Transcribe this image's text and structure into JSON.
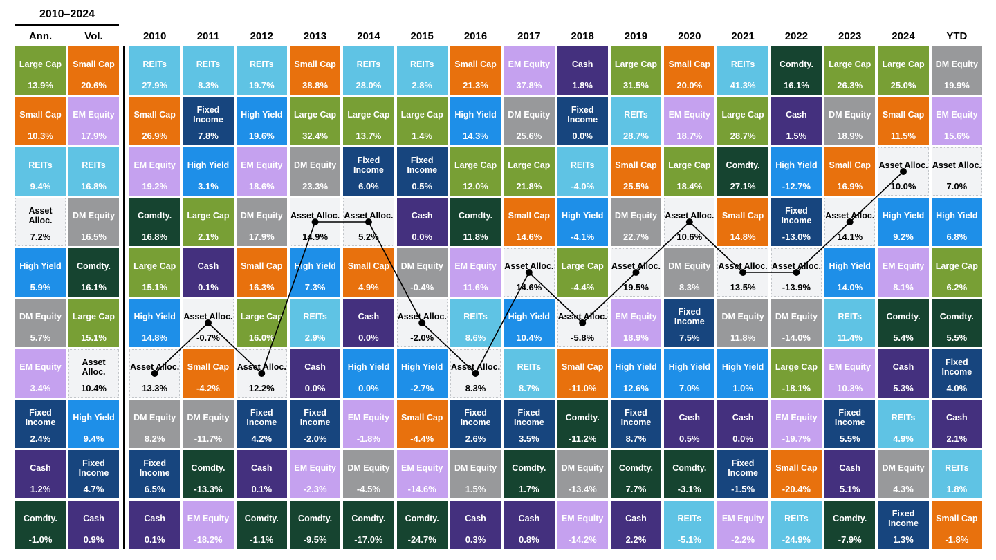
{
  "chart_data": {
    "type": "table",
    "title": "2010–2024",
    "description_visible_text_only": true,
    "asset_classes": {
      "large_cap": {
        "label": "Large Cap",
        "color": "#789F35",
        "text_color": "#ffffff"
      },
      "small_cap": {
        "label": "Small Cap",
        "color": "#E8710D",
        "text_color": "#ffffff"
      },
      "reits": {
        "label": "REITs",
        "color": "#5FC3E4",
        "text_color": "#ffffff"
      },
      "em_equity": {
        "label": "EM Equity",
        "color": "#C5A1EF",
        "text_color": "#ffffff"
      },
      "dm_equity": {
        "label": "DM Equity",
        "color": "#98999B",
        "text_color": "#ffffff"
      },
      "fixed_income": {
        "label": "Fixed Income",
        "color": "#17457E",
        "text_color": "#ffffff"
      },
      "high_yield": {
        "label": "High Yield",
        "color": "#1E8FE8",
        "text_color": "#ffffff"
      },
      "asset_alloc": {
        "label": "Asset Alloc.",
        "color": "#F2F3F5",
        "text_color": "#000000"
      },
      "cash": {
        "label": "Cash",
        "color": "#44307E",
        "text_color": "#ffffff"
      },
      "comdty": {
        "label": "Comdty.",
        "color": "#164430",
        "text_color": "#ffffff"
      }
    },
    "line_overlay": {
      "asset": "asset_alloc",
      "color": "#000000",
      "dot_radius": 5,
      "columns": [
        "2010",
        "2011",
        "2012",
        "2013",
        "2014",
        "2015",
        "2016",
        "2017",
        "2018",
        "2019",
        "2020",
        "2021",
        "2022",
        "2023",
        "2024"
      ]
    },
    "columns": [
      {
        "key": "ann",
        "header": "Ann.",
        "cells": [
          {
            "asset": "large_cap",
            "value": "13.9%"
          },
          {
            "asset": "small_cap",
            "value": "10.3%"
          },
          {
            "asset": "reits",
            "value": "9.4%"
          },
          {
            "asset": "asset_alloc",
            "value": "7.2%"
          },
          {
            "asset": "high_yield",
            "value": "5.9%"
          },
          {
            "asset": "dm_equity",
            "value": "5.7%"
          },
          {
            "asset": "em_equity",
            "value": "3.4%"
          },
          {
            "asset": "fixed_income",
            "value": "2.4%"
          },
          {
            "asset": "cash",
            "value": "1.2%"
          },
          {
            "asset": "comdty",
            "value": "-1.0%"
          }
        ]
      },
      {
        "key": "vol",
        "header": "Vol.",
        "cells": [
          {
            "asset": "small_cap",
            "value": "20.6%"
          },
          {
            "asset": "em_equity",
            "value": "17.9%"
          },
          {
            "asset": "reits",
            "value": "16.8%"
          },
          {
            "asset": "dm_equity",
            "value": "16.5%"
          },
          {
            "asset": "comdty",
            "value": "16.1%"
          },
          {
            "asset": "large_cap",
            "value": "15.1%"
          },
          {
            "asset": "asset_alloc",
            "value": "10.4%"
          },
          {
            "asset": "high_yield",
            "value": "9.4%"
          },
          {
            "asset": "fixed_income",
            "value": "4.7%"
          },
          {
            "asset": "cash",
            "value": "0.9%"
          }
        ]
      },
      {
        "key": "2010",
        "header": "2010",
        "cells": [
          {
            "asset": "reits",
            "value": "27.9%"
          },
          {
            "asset": "small_cap",
            "value": "26.9%"
          },
          {
            "asset": "em_equity",
            "value": "19.2%"
          },
          {
            "asset": "comdty",
            "value": "16.8%"
          },
          {
            "asset": "large_cap",
            "value": "15.1%"
          },
          {
            "asset": "high_yield",
            "value": "14.8%"
          },
          {
            "asset": "asset_alloc",
            "value": "13.3%"
          },
          {
            "asset": "dm_equity",
            "value": "8.2%"
          },
          {
            "asset": "fixed_income",
            "value": "6.5%"
          },
          {
            "asset": "cash",
            "value": "0.1%"
          }
        ]
      },
      {
        "key": "2011",
        "header": "2011",
        "cells": [
          {
            "asset": "reits",
            "value": "8.3%"
          },
          {
            "asset": "fixed_income",
            "value": "7.8%"
          },
          {
            "asset": "high_yield",
            "value": "3.1%"
          },
          {
            "asset": "large_cap",
            "value": "2.1%"
          },
          {
            "asset": "cash",
            "value": "0.1%"
          },
          {
            "asset": "asset_alloc",
            "value": "-0.7%"
          },
          {
            "asset": "small_cap",
            "value": "-4.2%"
          },
          {
            "asset": "dm_equity",
            "value": "-11.7%"
          },
          {
            "asset": "comdty",
            "value": "-13.3%"
          },
          {
            "asset": "em_equity",
            "value": "-18.2%"
          }
        ]
      },
      {
        "key": "2012",
        "header": "2012",
        "cells": [
          {
            "asset": "reits",
            "value": "19.7%"
          },
          {
            "asset": "high_yield",
            "value": "19.6%"
          },
          {
            "asset": "em_equity",
            "value": "18.6%"
          },
          {
            "asset": "dm_equity",
            "value": "17.9%"
          },
          {
            "asset": "small_cap",
            "value": "16.3%"
          },
          {
            "asset": "large_cap",
            "value": "16.0%"
          },
          {
            "asset": "asset_alloc",
            "value": "12.2%"
          },
          {
            "asset": "fixed_income",
            "value": "4.2%"
          },
          {
            "asset": "cash",
            "value": "0.1%"
          },
          {
            "asset": "comdty",
            "value": "-1.1%"
          }
        ]
      },
      {
        "key": "2013",
        "header": "2013",
        "cells": [
          {
            "asset": "small_cap",
            "value": "38.8%"
          },
          {
            "asset": "large_cap",
            "value": "32.4%"
          },
          {
            "asset": "dm_equity",
            "value": "23.3%"
          },
          {
            "asset": "asset_alloc",
            "value": "14.9%"
          },
          {
            "asset": "high_yield",
            "value": "7.3%"
          },
          {
            "asset": "reits",
            "value": "2.9%"
          },
          {
            "asset": "cash",
            "value": "0.0%"
          },
          {
            "asset": "fixed_income",
            "value": "-2.0%"
          },
          {
            "asset": "em_equity",
            "value": "-2.3%"
          },
          {
            "asset": "comdty",
            "value": "-9.5%"
          }
        ]
      },
      {
        "key": "2014",
        "header": "2014",
        "cells": [
          {
            "asset": "reits",
            "value": "28.0%"
          },
          {
            "asset": "large_cap",
            "value": "13.7%"
          },
          {
            "asset": "fixed_income",
            "value": "6.0%"
          },
          {
            "asset": "asset_alloc",
            "value": "5.2%"
          },
          {
            "asset": "small_cap",
            "value": "4.9%"
          },
          {
            "asset": "cash",
            "value": "0.0%"
          },
          {
            "asset": "high_yield",
            "value": "0.0%"
          },
          {
            "asset": "em_equity",
            "value": "-1.8%"
          },
          {
            "asset": "dm_equity",
            "value": "-4.5%"
          },
          {
            "asset": "comdty",
            "value": "-17.0%"
          }
        ]
      },
      {
        "key": "2015",
        "header": "2015",
        "cells": [
          {
            "asset": "reits",
            "value": "2.8%"
          },
          {
            "asset": "large_cap",
            "value": "1.4%"
          },
          {
            "asset": "fixed_income",
            "value": "0.5%"
          },
          {
            "asset": "cash",
            "value": "0.0%"
          },
          {
            "asset": "dm_equity",
            "value": "-0.4%"
          },
          {
            "asset": "asset_alloc",
            "value": "-2.0%"
          },
          {
            "asset": "high_yield",
            "value": "-2.7%"
          },
          {
            "asset": "small_cap",
            "value": "-4.4%"
          },
          {
            "asset": "em_equity",
            "value": "-14.6%"
          },
          {
            "asset": "comdty",
            "value": "-24.7%"
          }
        ]
      },
      {
        "key": "2016",
        "header": "2016",
        "cells": [
          {
            "asset": "small_cap",
            "value": "21.3%"
          },
          {
            "asset": "high_yield",
            "value": "14.3%"
          },
          {
            "asset": "large_cap",
            "value": "12.0%"
          },
          {
            "asset": "comdty",
            "value": "11.8%"
          },
          {
            "asset": "em_equity",
            "value": "11.6%"
          },
          {
            "asset": "reits",
            "value": "8.6%"
          },
          {
            "asset": "asset_alloc",
            "value": "8.3%"
          },
          {
            "asset": "fixed_income",
            "value": "2.6%"
          },
          {
            "asset": "dm_equity",
            "value": "1.5%"
          },
          {
            "asset": "cash",
            "value": "0.3%"
          }
        ]
      },
      {
        "key": "2017",
        "header": "2017",
        "cells": [
          {
            "asset": "em_equity",
            "value": "37.8%"
          },
          {
            "asset": "dm_equity",
            "value": "25.6%"
          },
          {
            "asset": "large_cap",
            "value": "21.8%"
          },
          {
            "asset": "small_cap",
            "value": "14.6%"
          },
          {
            "asset": "asset_alloc",
            "value": "14.6%"
          },
          {
            "asset": "high_yield",
            "value": "10.4%"
          },
          {
            "asset": "reits",
            "value": "8.7%"
          },
          {
            "asset": "fixed_income",
            "value": "3.5%"
          },
          {
            "asset": "comdty",
            "value": "1.7%"
          },
          {
            "asset": "cash",
            "value": "0.8%"
          }
        ]
      },
      {
        "key": "2018",
        "header": "2018",
        "cells": [
          {
            "asset": "cash",
            "value": "1.8%"
          },
          {
            "asset": "fixed_income",
            "value": "0.0%"
          },
          {
            "asset": "reits",
            "value": "-4.0%"
          },
          {
            "asset": "high_yield",
            "value": "-4.1%"
          },
          {
            "asset": "large_cap",
            "value": "-4.4%"
          },
          {
            "asset": "asset_alloc",
            "value": "-5.8%"
          },
          {
            "asset": "small_cap",
            "value": "-11.0%"
          },
          {
            "asset": "comdty",
            "value": "-11.2%"
          },
          {
            "asset": "dm_equity",
            "value": "-13.4%"
          },
          {
            "asset": "em_equity",
            "value": "-14.2%"
          }
        ]
      },
      {
        "key": "2019",
        "header": "2019",
        "cells": [
          {
            "asset": "large_cap",
            "value": "31.5%"
          },
          {
            "asset": "reits",
            "value": "28.7%"
          },
          {
            "asset": "small_cap",
            "value": "25.5%"
          },
          {
            "asset": "dm_equity",
            "value": "22.7%"
          },
          {
            "asset": "asset_alloc",
            "value": "19.5%"
          },
          {
            "asset": "em_equity",
            "value": "18.9%"
          },
          {
            "asset": "high_yield",
            "value": "12.6%"
          },
          {
            "asset": "fixed_income",
            "value": "8.7%"
          },
          {
            "asset": "comdty",
            "value": "7.7%"
          },
          {
            "asset": "cash",
            "value": "2.2%"
          }
        ]
      },
      {
        "key": "2020",
        "header": "2020",
        "cells": [
          {
            "asset": "small_cap",
            "value": "20.0%"
          },
          {
            "asset": "em_equity",
            "value": "18.7%"
          },
          {
            "asset": "large_cap",
            "value": "18.4%"
          },
          {
            "asset": "asset_alloc",
            "value": "10.6%"
          },
          {
            "asset": "dm_equity",
            "value": "8.3%"
          },
          {
            "asset": "fixed_income",
            "value": "7.5%"
          },
          {
            "asset": "high_yield",
            "value": "7.0%"
          },
          {
            "asset": "cash",
            "value": "0.5%"
          },
          {
            "asset": "comdty",
            "value": "-3.1%"
          },
          {
            "asset": "reits",
            "value": "-5.1%"
          }
        ]
      },
      {
        "key": "2021",
        "header": "2021",
        "cells": [
          {
            "asset": "reits",
            "value": "41.3%"
          },
          {
            "asset": "large_cap",
            "value": "28.7%"
          },
          {
            "asset": "comdty",
            "value": "27.1%"
          },
          {
            "asset": "small_cap",
            "value": "14.8%"
          },
          {
            "asset": "asset_alloc",
            "value": "13.5%"
          },
          {
            "asset": "dm_equity",
            "value": "11.8%"
          },
          {
            "asset": "high_yield",
            "value": "1.0%"
          },
          {
            "asset": "cash",
            "value": "0.0%"
          },
          {
            "asset": "fixed_income",
            "value": "-1.5%"
          },
          {
            "asset": "em_equity",
            "value": "-2.2%"
          }
        ]
      },
      {
        "key": "2022",
        "header": "2022",
        "cells": [
          {
            "asset": "comdty",
            "value": "16.1%"
          },
          {
            "asset": "cash",
            "value": "1.5%"
          },
          {
            "asset": "high_yield",
            "value": "-12.7%"
          },
          {
            "asset": "fixed_income",
            "value": "-13.0%"
          },
          {
            "asset": "asset_alloc",
            "value": "-13.9%"
          },
          {
            "asset": "dm_equity",
            "value": "-14.0%"
          },
          {
            "asset": "large_cap",
            "value": "-18.1%"
          },
          {
            "asset": "em_equity",
            "value": "-19.7%"
          },
          {
            "asset": "small_cap",
            "value": "-20.4%"
          },
          {
            "asset": "reits",
            "value": "-24.9%"
          }
        ]
      },
      {
        "key": "2023",
        "header": "2023",
        "cells": [
          {
            "asset": "large_cap",
            "value": "26.3%"
          },
          {
            "asset": "dm_equity",
            "value": "18.9%"
          },
          {
            "asset": "small_cap",
            "value": "16.9%"
          },
          {
            "asset": "asset_alloc",
            "value": "14.1%"
          },
          {
            "asset": "high_yield",
            "value": "14.0%"
          },
          {
            "asset": "reits",
            "value": "11.4%"
          },
          {
            "asset": "em_equity",
            "value": "10.3%"
          },
          {
            "asset": "fixed_income",
            "value": "5.5%"
          },
          {
            "asset": "cash",
            "value": "5.1%"
          },
          {
            "asset": "comdty",
            "value": "-7.9%"
          }
        ]
      },
      {
        "key": "2024",
        "header": "2024",
        "cells": [
          {
            "asset": "large_cap",
            "value": "25.0%"
          },
          {
            "asset": "small_cap",
            "value": "11.5%"
          },
          {
            "asset": "asset_alloc",
            "value": "10.0%"
          },
          {
            "asset": "high_yield",
            "value": "9.2%"
          },
          {
            "asset": "em_equity",
            "value": "8.1%"
          },
          {
            "asset": "comdty",
            "value": "5.4%"
          },
          {
            "asset": "cash",
            "value": "5.3%"
          },
          {
            "asset": "reits",
            "value": "4.9%"
          },
          {
            "asset": "dm_equity",
            "value": "4.3%"
          },
          {
            "asset": "fixed_income",
            "value": "1.3%"
          }
        ]
      },
      {
        "key": "ytd",
        "header": "YTD",
        "cells": [
          {
            "asset": "dm_equity",
            "value": "19.9%"
          },
          {
            "asset": "em_equity",
            "value": "15.6%"
          },
          {
            "asset": "asset_alloc",
            "value": "7.0%"
          },
          {
            "asset": "high_yield",
            "value": "6.8%"
          },
          {
            "asset": "large_cap",
            "value": "6.2%"
          },
          {
            "asset": "comdty",
            "value": "5.5%"
          },
          {
            "asset": "fixed_income",
            "value": "4.0%"
          },
          {
            "asset": "cash",
            "value": "2.1%"
          },
          {
            "asset": "reits",
            "value": "1.8%"
          },
          {
            "asset": "small_cap",
            "value": "-1.8%"
          }
        ]
      }
    ]
  }
}
